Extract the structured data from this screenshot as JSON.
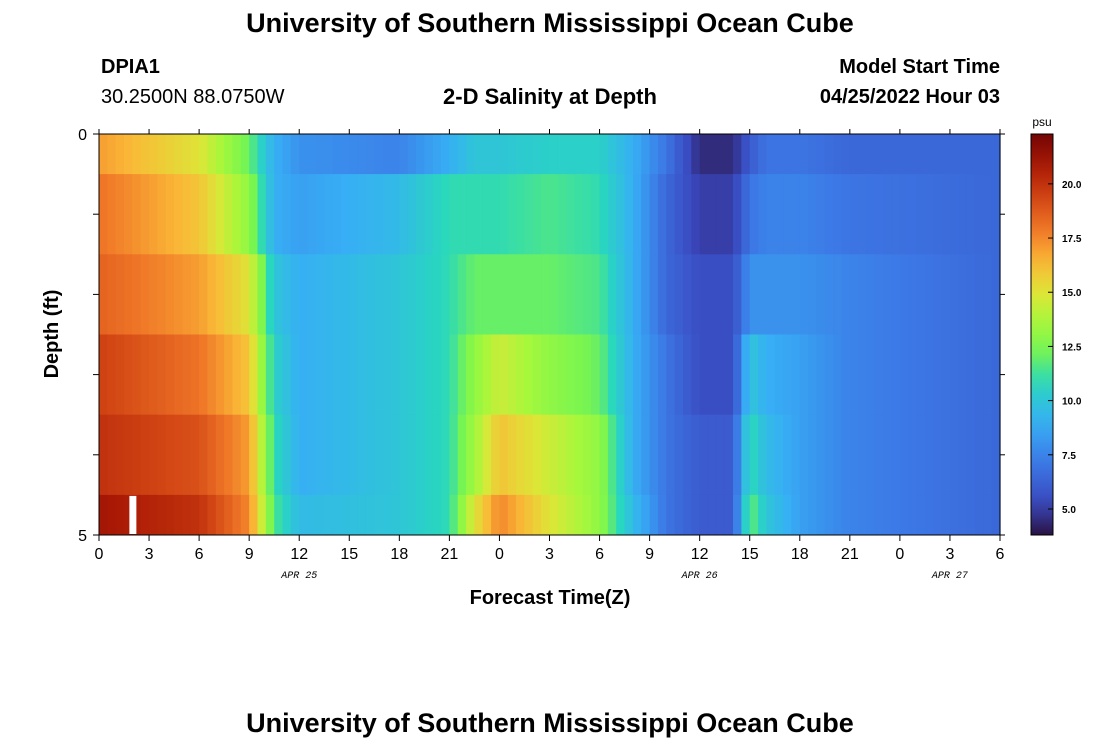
{
  "header": {
    "title": "University of Southern Mississippi Ocean Cube",
    "station_id": "DPIA1",
    "coordinates": "30.2500N  88.0750W",
    "plot_title": "2-D Salinity at Depth",
    "start_time_label": "Model Start Time",
    "start_time_value": "04/25/2022 Hour 03",
    "footer_title": "University of Southern Mississippi Ocean Cube"
  },
  "chart_data": {
    "type": "heatmap",
    "title": "2-D Salinity at Depth",
    "xlabel": "Forecast Time(Z)",
    "ylabel": "Depth (ft)",
    "x_tick_labels": [
      "0",
      "3",
      "6",
      "9",
      "12",
      "15",
      "18",
      "21",
      "0",
      "3",
      "6",
      "9",
      "12",
      "15",
      "18",
      "21",
      "0",
      "3",
      "6"
    ],
    "x_range_hours": [
      0,
      54
    ],
    "date_labels": [
      {
        "label": "APR 25",
        "hour": 12
      },
      {
        "label": "APR 26",
        "hour": 36
      },
      {
        "label": "APR 27",
        "hour": 51
      }
    ],
    "y_tick_labels": [
      {
        "label": "0",
        "depth": 0
      },
      {
        "label": "5",
        "depth": 5
      }
    ],
    "ylim": [
      0,
      5
    ],
    "colorbar": {
      "unit": "psu",
      "range": [
        3.8,
        22.3
      ],
      "ticks": [
        "5.0",
        "7.5",
        "10.0",
        "12.5",
        "15.0",
        "17.5",
        "20.0"
      ],
      "tick_values": [
        5.0,
        7.5,
        10.0,
        12.5,
        15.0,
        17.5,
        20.0
      ]
    },
    "missing_marker": {
      "hour": 2,
      "depth_from": 4.5,
      "depth_to": 5
    },
    "time_hours": [
      0,
      6,
      9,
      10.5,
      12,
      18,
      21,
      22.5,
      24,
      27,
      30,
      32,
      34,
      36,
      38,
      39,
      40,
      42,
      45,
      54
    ],
    "layers": [
      {
        "depth_top": 0.0,
        "depth_bottom": 0.5,
        "values": [
          17,
          15,
          12,
          9,
          8,
          7.5,
          9,
          10,
          10,
          10.5,
          10.5,
          9,
          7,
          4.5,
          4.5,
          6,
          7,
          7,
          6.5,
          6.5
        ]
      },
      {
        "depth_top": 0.5,
        "depth_bottom": 1.5,
        "values": [
          18,
          16,
          13,
          9,
          8.5,
          9.5,
          11,
          11,
          11,
          11.5,
          11,
          9,
          6.5,
          5,
          5,
          7,
          7.5,
          7.5,
          7,
          6.5
        ]
      },
      {
        "depth_top": 1.5,
        "depth_bottom": 2.5,
        "values": [
          18.5,
          17,
          15,
          10,
          9,
          10,
          11,
          12,
          12,
          12,
          11.5,
          9,
          6.5,
          5.5,
          5.5,
          8,
          8,
          8,
          7.5,
          6.5
        ]
      },
      {
        "depth_top": 2.5,
        "depth_bottom": 3.5,
        "values": [
          19.5,
          18,
          16,
          10.5,
          9,
          10,
          11,
          13,
          14.5,
          13,
          12,
          9,
          7,
          5.5,
          5.5,
          10,
          9,
          8.5,
          7.5,
          6.5
        ]
      },
      {
        "depth_top": 3.5,
        "depth_bottom": 4.5,
        "values": [
          20,
          19,
          17,
          11,
          9,
          10,
          11,
          13.5,
          16,
          14.5,
          13,
          9,
          7,
          6,
          6,
          11,
          9.5,
          8.5,
          7.5,
          6.5
        ]
      },
      {
        "depth_top": 4.5,
        "depth_bottom": 5.0,
        "values": [
          21,
          20,
          17.5,
          11.5,
          9.5,
          10,
          11,
          15,
          17.5,
          15,
          13,
          9.5,
          7,
          6,
          6,
          12,
          10,
          8.5,
          7.5,
          6.5
        ]
      }
    ]
  }
}
